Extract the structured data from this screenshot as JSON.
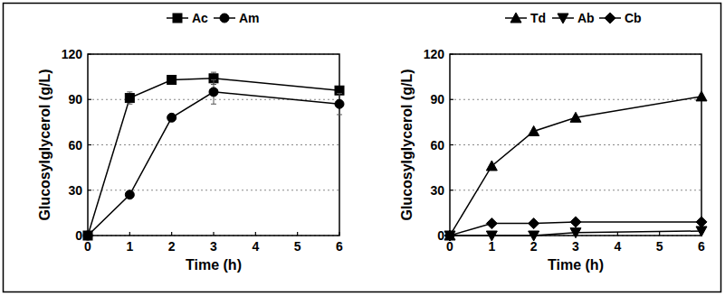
{
  "chart_data": [
    {
      "type": "line",
      "x_label": "Time (h)",
      "y_label": "Glucosylglycerol (g/L)",
      "x": [
        0,
        1,
        2,
        3,
        6
      ],
      "series": [
        {
          "name": "Ac",
          "color": "#000000",
          "marker": "square",
          "values": [
            0,
            91,
            103,
            104,
            96
          ],
          "errors": [
            0,
            4,
            1,
            4,
            1
          ]
        },
        {
          "name": "Am",
          "color": "#000000",
          "marker": "circle",
          "values": [
            0,
            27,
            78,
            95,
            87
          ],
          "errors": [
            0,
            1,
            1,
            8,
            7
          ]
        }
      ],
      "xlim": [
        0,
        6
      ],
      "ylim": [
        0,
        120
      ],
      "xticks": [
        0,
        1,
        2,
        3,
        4,
        5,
        6
      ],
      "yticks": [
        0,
        30,
        60,
        90,
        120
      ],
      "grid": true,
      "legend": "top"
    },
    {
      "type": "line",
      "x_label": "Time (h)",
      "y_label": "Glucosylglycerol (g/L)",
      "x": [
        0,
        1,
        2,
        3,
        6
      ],
      "series": [
        {
          "name": "Td",
          "color": "#000000",
          "marker": "triangle-up",
          "values": [
            0,
            46,
            69,
            78,
            92
          ]
        },
        {
          "name": "Ab",
          "color": "#000000",
          "marker": "triangle-down",
          "values": [
            0,
            0,
            0,
            2,
            3
          ]
        },
        {
          "name": "Cb",
          "color": "#000000",
          "marker": "diamond",
          "values": [
            0,
            8,
            8,
            9,
            9
          ]
        }
      ],
      "xlim": [
        0,
        6
      ],
      "ylim": [
        0,
        120
      ],
      "xticks": [
        0,
        1,
        2,
        3,
        4,
        5,
        6
      ],
      "yticks": [
        0,
        30,
        60,
        90,
        120
      ],
      "grid": true,
      "legend": "top"
    }
  ]
}
